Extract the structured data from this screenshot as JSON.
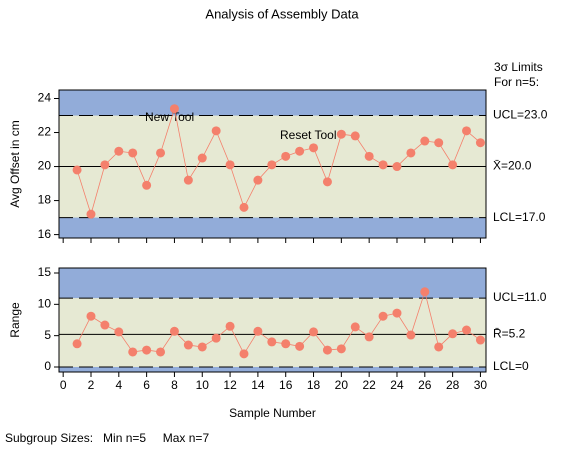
{
  "title": "Analysis of Assembly Data",
  "footnote": "Subgroup Sizes:   Min n=5     Max n=7",
  "limits_title": [
    "3σ Limits",
    "For n=5:"
  ],
  "chart_data": [
    {
      "type": "line",
      "ylabel": "Avg Offset in cm",
      "x": [
        1,
        2,
        3,
        4,
        5,
        6,
        7,
        8,
        9,
        10,
        11,
        12,
        13,
        14,
        15,
        16,
        17,
        18,
        19,
        20,
        21,
        22,
        23,
        24,
        25,
        26,
        27,
        28,
        29,
        30
      ],
      "series": [
        {
          "color": "#f4806c",
          "values": [
            19.8,
            17.2,
            20.1,
            20.9,
            20.8,
            18.9,
            20.8,
            23.4,
            19.2,
            20.5,
            22.1,
            20.1,
            17.6,
            19.2,
            20.1,
            20.6,
            20.9,
            21.1,
            19.1,
            21.9,
            21.8,
            20.6,
            20.1,
            20.0,
            20.8,
            21.5,
            21.4,
            20.1,
            22.1,
            21.4
          ]
        }
      ],
      "limits": [
        {
          "value": 23.0,
          "label": "UCL=23.0"
        },
        {
          "value": 20.0,
          "label": "X̄=20.0"
        },
        {
          "value": 17.0,
          "label": "LCL=17.0"
        }
      ],
      "annotations": [
        "New Tool",
        "Reset Tool"
      ],
      "xlim": [
        -0.3,
        30.4
      ],
      "xticks": [
        0,
        2,
        4,
        6,
        8,
        10,
        12,
        14,
        16,
        18,
        20,
        22,
        24,
        26,
        28,
        30
      ],
      "show_xtick_labels": false,
      "ylim": [
        15.8,
        24.5
      ],
      "yticks": [
        16,
        18,
        20,
        22,
        24
      ],
      "zone_colors": {
        "outside": "#92acd9",
        "inside": "#e6e9d3"
      }
    },
    {
      "type": "line",
      "ylabel": "Range",
      "xlabel": "Sample Number",
      "x": [
        1,
        2,
        3,
        4,
        5,
        6,
        7,
        8,
        9,
        10,
        11,
        12,
        13,
        14,
        15,
        16,
        17,
        18,
        19,
        20,
        21,
        22,
        23,
        24,
        25,
        26,
        27,
        28,
        29,
        30
      ],
      "series": [
        {
          "color": "#f4806c",
          "values": [
            3.7,
            8.1,
            6.7,
            5.6,
            2.4,
            2.7,
            2.4,
            5.7,
            3.5,
            3.2,
            4.6,
            6.5,
            2.1,
            5.7,
            4.0,
            3.7,
            3.3,
            5.6,
            2.7,
            2.9,
            6.4,
            4.8,
            8.1,
            8.6,
            5.1,
            12.0,
            3.2,
            5.3,
            5.9,
            4.3
          ]
        }
      ],
      "limits": [
        {
          "value": 11.0,
          "label": "UCL=11.0"
        },
        {
          "value": 5.2,
          "label": "R̄=5.2"
        },
        {
          "value": 0,
          "label": "LCL=0"
        }
      ],
      "xlim": [
        -0.3,
        30.4
      ],
      "xticks": [
        0,
        2,
        4,
        6,
        8,
        10,
        12,
        14,
        16,
        18,
        20,
        22,
        24,
        26,
        28,
        30
      ],
      "show_xtick_labels": true,
      "ylim": [
        -0.8,
        15.8
      ],
      "yticks": [
        0,
        5,
        10,
        15
      ],
      "zone_colors": {
        "outside": "#92acd9",
        "inside": "#e6e9d3"
      }
    }
  ]
}
